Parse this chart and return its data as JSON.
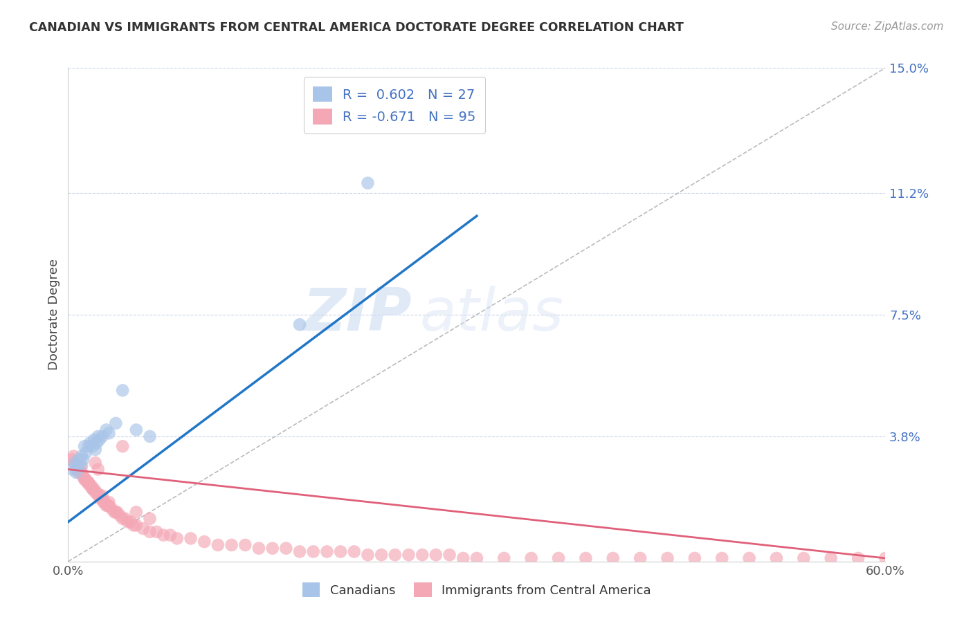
{
  "title": "CANADIAN VS IMMIGRANTS FROM CENTRAL AMERICA DOCTORATE DEGREE CORRELATION CHART",
  "source": "Source: ZipAtlas.com",
  "ylabel": "Doctorate Degree",
  "xlim": [
    0.0,
    0.6
  ],
  "ylim": [
    0.0,
    0.15
  ],
  "yticks": [
    0.0,
    0.038,
    0.075,
    0.112,
    0.15
  ],
  "ytick_labels": [
    "",
    "3.8%",
    "7.5%",
    "11.2%",
    "15.0%"
  ],
  "xticks": [
    0.0,
    0.6
  ],
  "xtick_labels": [
    "0.0%",
    "60.0%"
  ],
  "canadians_R": 0.602,
  "canadians_N": 27,
  "immigrants_R": -0.671,
  "immigrants_N": 95,
  "canadians_color": "#a8c4e8",
  "canadians_line_color": "#2176c7",
  "immigrants_color": "#f4a7b5",
  "immigrants_line_color": "#e0607a",
  "diagonal_color": "#bbbbbb",
  "background_color": "#ffffff",
  "grid_color": "#c8d4e8",
  "watermark_zip": "ZIP",
  "watermark_atlas": "atlas",
  "canadians_x": [
    0.003,
    0.005,
    0.006,
    0.007,
    0.008,
    0.009,
    0.01,
    0.011,
    0.012,
    0.013,
    0.015,
    0.016,
    0.018,
    0.019,
    0.02,
    0.021,
    0.022,
    0.023,
    0.025,
    0.028,
    0.03,
    0.035,
    0.04,
    0.05,
    0.06,
    0.17,
    0.22
  ],
  "canadians_y": [
    0.028,
    0.03,
    0.027,
    0.029,
    0.031,
    0.029,
    0.032,
    0.031,
    0.035,
    0.033,
    0.035,
    0.036,
    0.035,
    0.037,
    0.034,
    0.036,
    0.038,
    0.037,
    0.038,
    0.04,
    0.039,
    0.042,
    0.052,
    0.04,
    0.038,
    0.072,
    0.115
  ],
  "immigrants_x": [
    0.003,
    0.005,
    0.006,
    0.007,
    0.008,
    0.009,
    0.01,
    0.011,
    0.012,
    0.013,
    0.014,
    0.015,
    0.016,
    0.017,
    0.018,
    0.019,
    0.02,
    0.021,
    0.022,
    0.023,
    0.024,
    0.025,
    0.026,
    0.027,
    0.028,
    0.029,
    0.03,
    0.032,
    0.034,
    0.036,
    0.038,
    0.04,
    0.042,
    0.044,
    0.046,
    0.048,
    0.05,
    0.055,
    0.06,
    0.065,
    0.07,
    0.075,
    0.08,
    0.09,
    0.1,
    0.11,
    0.12,
    0.13,
    0.14,
    0.15,
    0.16,
    0.17,
    0.18,
    0.19,
    0.2,
    0.21,
    0.22,
    0.23,
    0.24,
    0.25,
    0.26,
    0.27,
    0.28,
    0.29,
    0.3,
    0.32,
    0.34,
    0.36,
    0.38,
    0.4,
    0.42,
    0.44,
    0.46,
    0.48,
    0.5,
    0.52,
    0.54,
    0.56,
    0.58,
    0.6,
    0.004,
    0.006,
    0.008,
    0.01,
    0.012,
    0.015,
    0.018,
    0.02,
    0.022,
    0.025,
    0.03,
    0.035,
    0.04,
    0.05,
    0.06
  ],
  "immigrants_y": [
    0.031,
    0.03,
    0.029,
    0.028,
    0.028,
    0.027,
    0.027,
    0.026,
    0.025,
    0.025,
    0.024,
    0.024,
    0.023,
    0.023,
    0.022,
    0.022,
    0.021,
    0.021,
    0.02,
    0.02,
    0.019,
    0.019,
    0.018,
    0.018,
    0.017,
    0.017,
    0.017,
    0.016,
    0.015,
    0.015,
    0.014,
    0.013,
    0.013,
    0.012,
    0.012,
    0.011,
    0.011,
    0.01,
    0.009,
    0.009,
    0.008,
    0.008,
    0.007,
    0.007,
    0.006,
    0.005,
    0.005,
    0.005,
    0.004,
    0.004,
    0.004,
    0.003,
    0.003,
    0.003,
    0.003,
    0.003,
    0.002,
    0.002,
    0.002,
    0.002,
    0.002,
    0.002,
    0.002,
    0.001,
    0.001,
    0.001,
    0.001,
    0.001,
    0.001,
    0.001,
    0.001,
    0.001,
    0.001,
    0.001,
    0.001,
    0.001,
    0.001,
    0.001,
    0.001,
    0.001,
    0.032,
    0.028,
    0.027,
    0.029,
    0.025,
    0.024,
    0.022,
    0.03,
    0.028,
    0.02,
    0.018,
    0.015,
    0.035,
    0.015,
    0.013
  ],
  "can_line_x": [
    0.0,
    0.3
  ],
  "can_line_y": [
    0.012,
    0.105
  ],
  "imm_line_x": [
    0.0,
    0.6
  ],
  "imm_line_y": [
    0.028,
    0.001
  ]
}
